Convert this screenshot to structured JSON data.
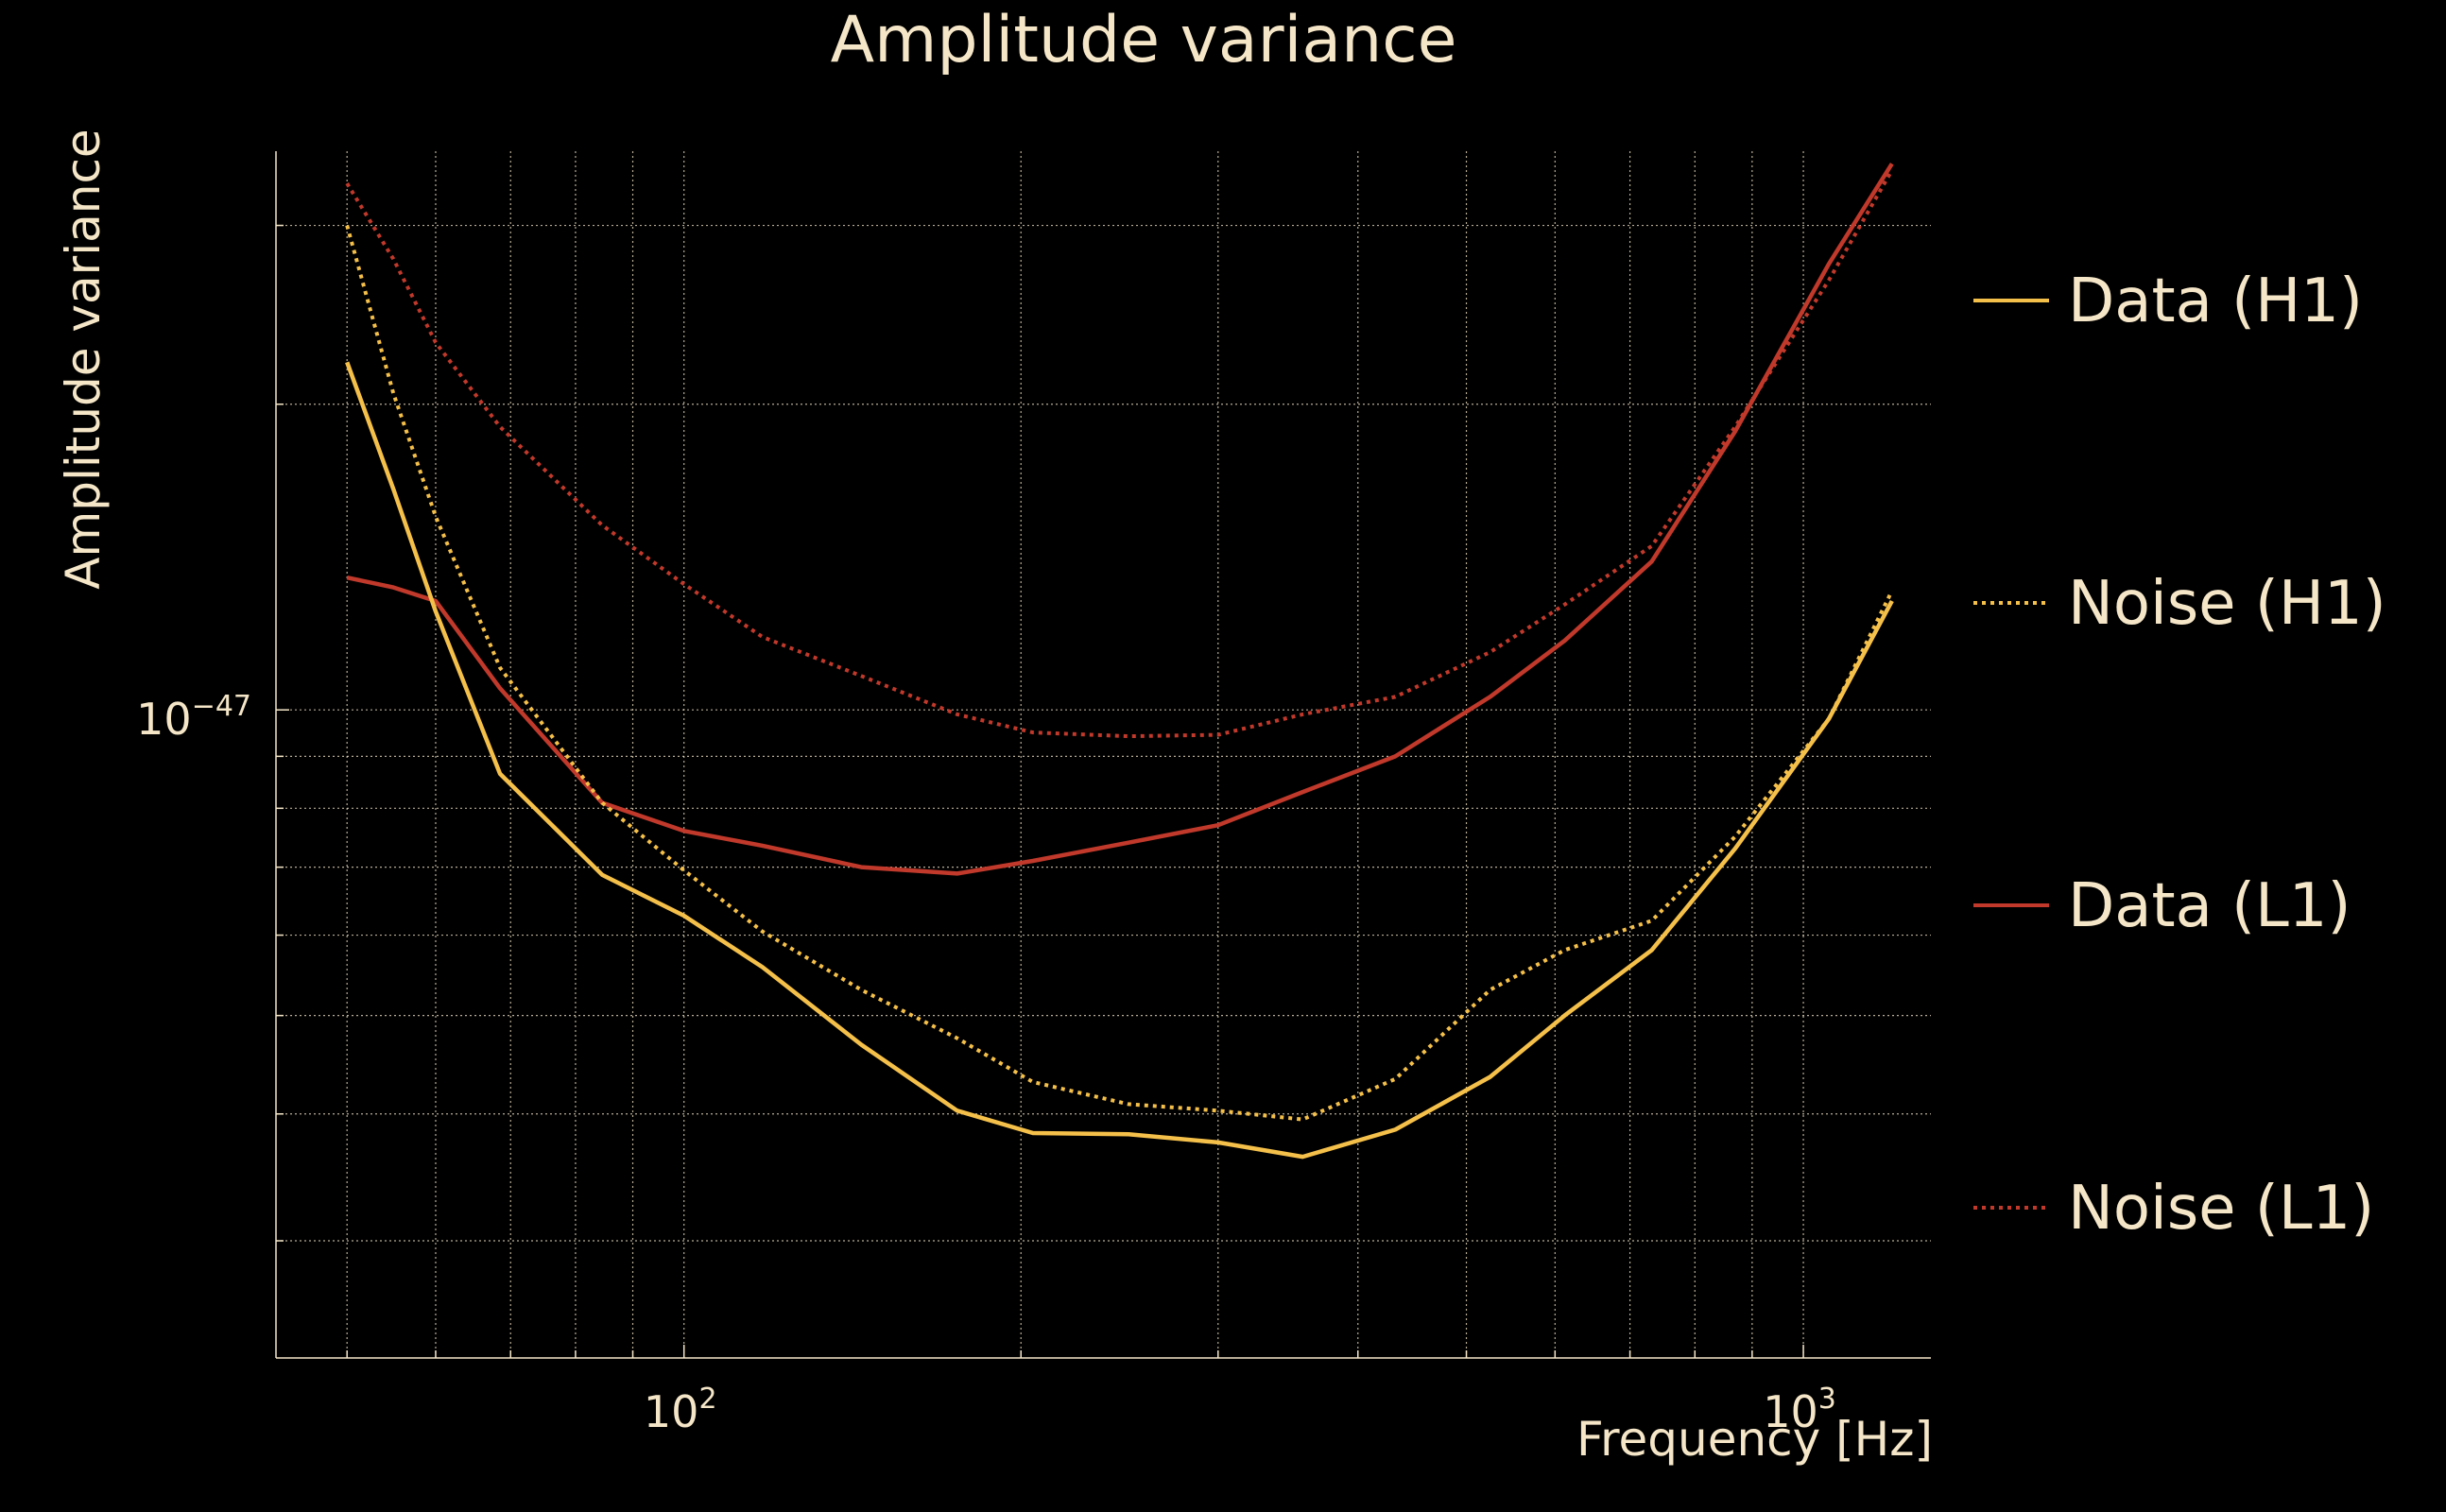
{
  "chart_data": {
    "type": "line",
    "title": "Amplitude variance",
    "xlabel": "Frequency [Hz]",
    "ylabel": "Amplitude variance",
    "x_scale": "log",
    "y_scale": "log",
    "xlim": [
      43.2,
      1300
    ],
    "ylim": [
      2.3e-48,
      3.55e-47
    ],
    "x_ticks": [
      {
        "value": 100,
        "base": "10",
        "exp": "2"
      },
      {
        "value": 1000,
        "base": "10",
        "exp": "3"
      }
    ],
    "y_ticks": [
      {
        "value": 1e-47,
        "base": "10",
        "exp": "−47"
      }
    ],
    "grid": true,
    "legend_position": "right",
    "x": [
      50,
      55,
      60,
      68.5,
      84.5,
      100,
      117.5,
      144,
      175.4,
      205,
      249.5,
      300,
      357,
      432,
      525,
      612,
      732,
      869,
      1054,
      1200
    ],
    "series": [
      {
        "name": "Data (H1)",
        "color": "#f5c04a",
        "dash": "solid",
        "values": [
          2.2e-47,
          1.65e-47,
          1.25e-47,
          8.65e-48,
          6.88e-48,
          6.27e-48,
          5.58e-48,
          4.68e-48,
          4.03e-48,
          3.83e-48,
          3.82e-48,
          3.75e-48,
          3.63e-48,
          3.86e-48,
          4.35e-48,
          5e-48,
          5.8e-48,
          7.3e-48,
          9.8e-48,
          1.28e-47
        ]
      },
      {
        "name": "Noise (H1)",
        "color": "#f5c04a",
        "dash": "dotted",
        "values": [
          3e-47,
          2.05e-47,
          1.55e-47,
          1.1e-47,
          8.1e-48,
          6.95e-48,
          6.05e-48,
          5.3e-48,
          4.75e-48,
          4.3e-48,
          4.09e-48,
          4.03e-48,
          3.95e-48,
          4.33e-48,
          5.3e-48,
          5.8e-48,
          6.2e-48,
          7.5e-48,
          9.8e-48,
          1.31e-47
        ]
      },
      {
        "name": "Data (L1)",
        "color": "#c0392b",
        "dash": "solid",
        "values": [
          1.35e-47,
          1.32e-47,
          1.28e-47,
          1.05e-47,
          8.1e-48,
          7.6e-48,
          7.35e-48,
          7e-48,
          6.9e-48,
          7.1e-48,
          7.4e-48,
          7.7e-48,
          8.3e-48,
          9e-48,
          1.03e-47,
          1.17e-47,
          1.4e-47,
          1.88e-47,
          2.75e-47,
          3.45e-47
        ]
      },
      {
        "name": "Noise (L1)",
        "color": "#c0392b",
        "dash": "dotted",
        "values": [
          3.3e-47,
          2.78e-47,
          2.3e-47,
          1.9e-47,
          1.52e-47,
          1.33e-47,
          1.18e-47,
          1.08e-47,
          9.9e-48,
          9.5e-48,
          9.42e-48,
          9.45e-48,
          9.9e-48,
          1.03e-47,
          1.14e-47,
          1.27e-47,
          1.45e-47,
          1.9e-47,
          2.65e-47,
          3.4e-47
        ]
      }
    ]
  }
}
